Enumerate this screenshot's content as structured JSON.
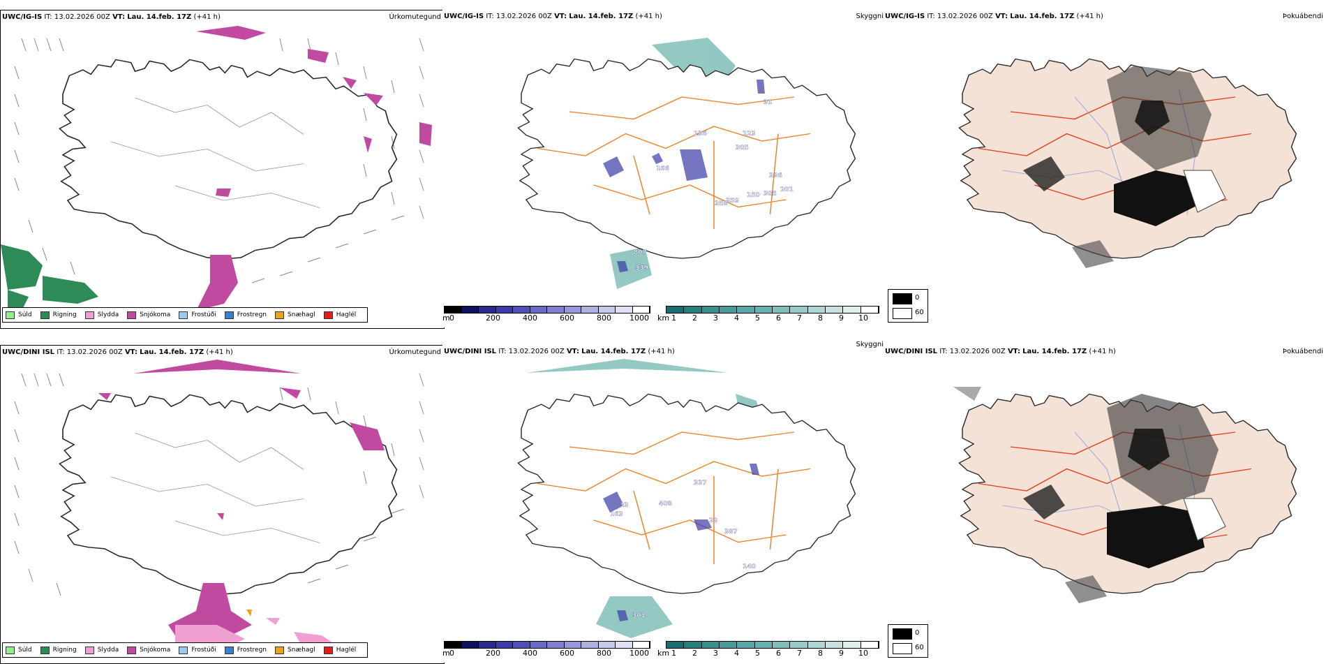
{
  "rows": [
    {
      "model": "UWC/IG-IS",
      "meta_prefix": "IT:",
      "it_value": "13.02.2026 00Z",
      "vt_label": "VT:",
      "vt_value": "Lau. 14.feb. 17Z",
      "lead": "(+41 h)"
    },
    {
      "model": "UWC/DINI ISL",
      "meta_prefix": "IT:",
      "it_value": "13.02.2026 00Z",
      "vt_label": "VT:",
      "vt_value": "Lau. 14.feb. 17Z",
      "lead": "(+41 h)"
    }
  ],
  "panel_titles": {
    "precip_type": "Úrkomutegund",
    "cloud_base": "Skyggni",
    "fog": "Þokuábendi"
  },
  "precip_legend": [
    {
      "label": "Súld",
      "color": "#90ee90"
    },
    {
      "label": "Rigning",
      "color": "#2e8b57"
    },
    {
      "label": "Slydda",
      "color": "#f0a0d0"
    },
    {
      "label": "Snjókoma",
      "color": "#c04aa0"
    },
    {
      "label": "Frostúði",
      "color": "#9ec8f0"
    },
    {
      "label": "Frostregn",
      "color": "#3a7fd0"
    },
    {
      "label": "Snæhagl",
      "color": "#f0a020"
    },
    {
      "label": "Haglél",
      "color": "#e02020"
    }
  ],
  "height_bar": {
    "unit": "m",
    "ticks": [
      "0",
      "200",
      "400",
      "600",
      "800",
      "1000"
    ],
    "colors": [
      "#000000",
      "#101060",
      "#2a2a8a",
      "#3b3ba8",
      "#5050b8",
      "#6a6ac4",
      "#8080cc",
      "#9898d6",
      "#b0b0e0",
      "#c8c8ea",
      "#e0e0f4",
      "#ffffff"
    ]
  },
  "visibility_bar": {
    "unit": "km",
    "ticks": [
      "1",
      "2",
      "3",
      "4",
      "5",
      "6",
      "7",
      "8",
      "9",
      "10"
    ],
    "colors": [
      "#1a6e6e",
      "#2a7e7e",
      "#3a8e8e",
      "#4a9a9a",
      "#5aa6a6",
      "#6ab2b2",
      "#80bebe",
      "#98caca",
      "#b0d6d6",
      "#c8e2e2",
      "#e0eeee",
      "#ffffff"
    ]
  },
  "fog_legend": {
    "black_label": "0",
    "white_label": "60"
  },
  "cloud_labels_top": [
    "166",
    "136",
    "123",
    "305",
    "336",
    "201",
    "359",
    "358",
    "150",
    "305",
    "807",
    "339",
    "31"
  ],
  "cloud_labels_bottom": [
    "33",
    "163",
    "408",
    "337",
    "22",
    "387",
    "301",
    "140"
  ],
  "colors": {
    "snow": "#c04aa0",
    "rain": "#2e8b57",
    "sleet": "#f0a0d0",
    "teal": "#3a9a92",
    "land_fog": "#f5e2d6",
    "roads_orange": "#e8832a",
    "roads_red": "#e0401e"
  }
}
